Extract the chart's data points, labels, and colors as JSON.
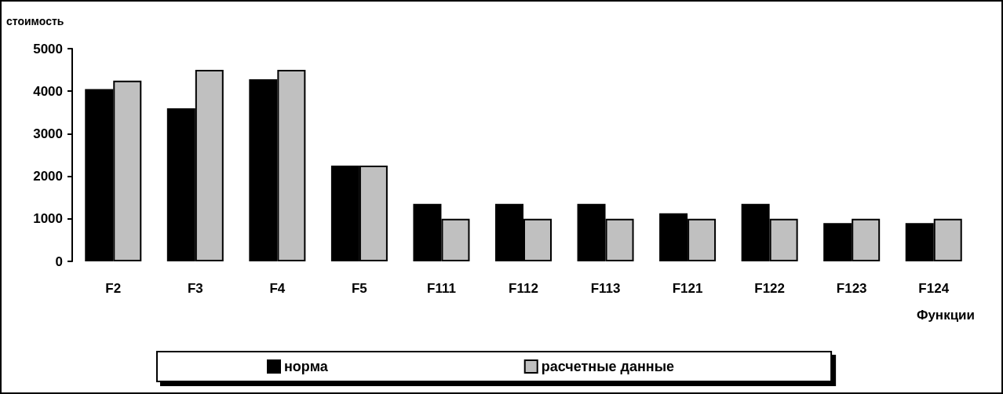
{
  "chart_data": {
    "type": "bar",
    "ylabel": "стоимость",
    "xlabel": "Функции",
    "categories": [
      "F2",
      "F3",
      "F4",
      "F5",
      "F111",
      "F112",
      "F113",
      "F121",
      "F122",
      "F123",
      "F124"
    ],
    "series": [
      {
        "name": "норма",
        "color": "#000000",
        "values": [
          4050,
          3600,
          4280,
          2250,
          1350,
          1350,
          1350,
          1130,
          1350,
          900,
          900
        ]
      },
      {
        "name": "расчетные данные",
        "color": "#c0c0c0",
        "values": [
          4250,
          4500,
          4500,
          2250,
          1000,
          1000,
          1000,
          1000,
          1000,
          1000,
          1000
        ]
      }
    ],
    "ylim": [
      0,
      5000
    ],
    "yticks": [
      0,
      1000,
      2000,
      3000,
      4000,
      5000
    ],
    "grid": false,
    "legend": "bottom"
  }
}
